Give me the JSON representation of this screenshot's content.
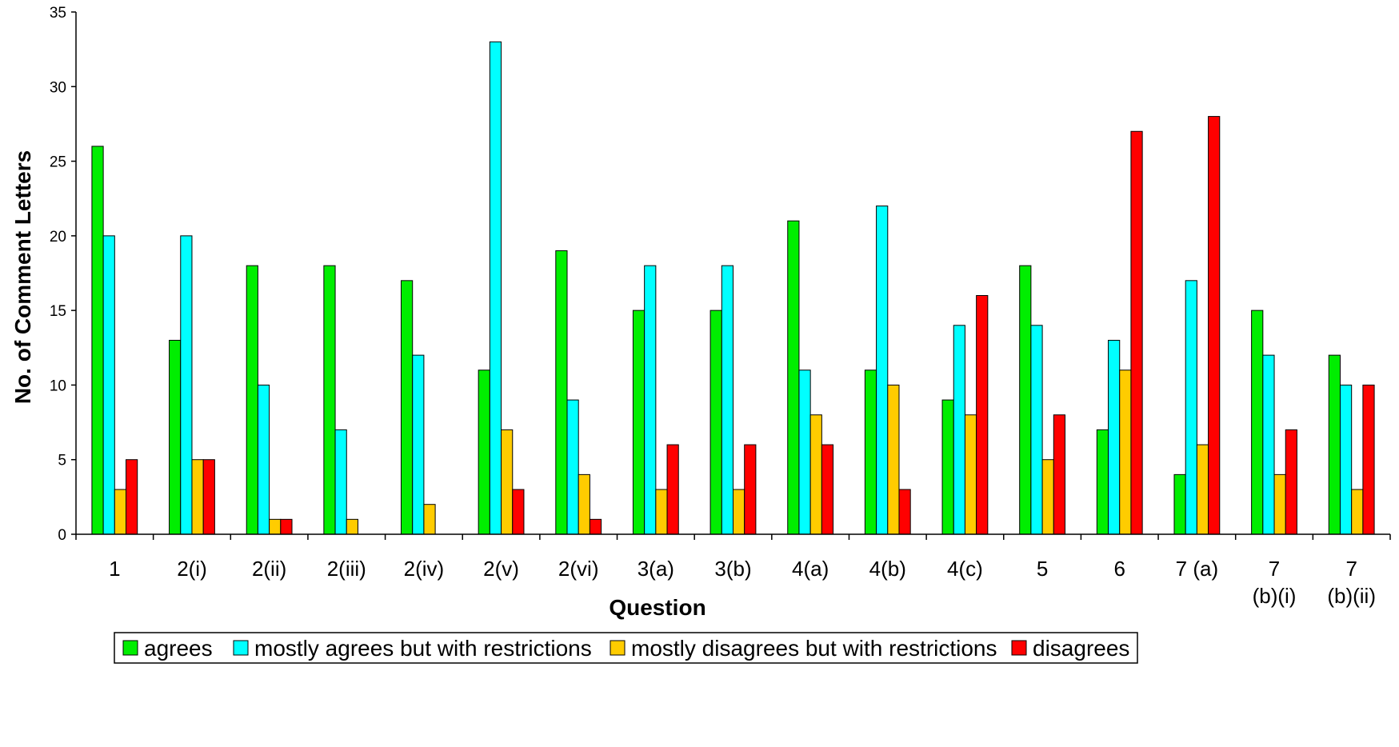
{
  "chart_data": {
    "type": "bar",
    "title": "",
    "xlabel": "Question",
    "ylabel": "No. of Comment Letters",
    "ylim": [
      0,
      35
    ],
    "yticks": [
      0,
      5,
      10,
      15,
      20,
      25,
      30,
      35
    ],
    "grid": false,
    "legend_position": "bottom",
    "categories": [
      [
        "1"
      ],
      [
        "2(i)"
      ],
      [
        "2(ii)"
      ],
      [
        "2(iii)"
      ],
      [
        "2(iv)"
      ],
      [
        "2(v)"
      ],
      [
        "2(vi)"
      ],
      [
        "3(a)"
      ],
      [
        "3(b)"
      ],
      [
        "4(a)"
      ],
      [
        "4(b)"
      ],
      [
        "4(c)"
      ],
      [
        "5"
      ],
      [
        "6"
      ],
      [
        "7 (a)"
      ],
      [
        "7",
        "(b)(i)"
      ],
      [
        "7",
        "(b)(ii)"
      ]
    ],
    "series": [
      {
        "name": "agrees",
        "color": "#00ee00",
        "values": [
          26,
          13,
          18,
          18,
          17,
          11,
          19,
          15,
          15,
          21,
          11,
          9,
          18,
          7,
          4,
          15,
          12
        ]
      },
      {
        "name": "mostly agrees but with restrictions",
        "color": "#00ffff",
        "values": [
          20,
          20,
          10,
          7,
          12,
          33,
          9,
          18,
          18,
          11,
          22,
          14,
          14,
          13,
          17,
          12,
          10
        ]
      },
      {
        "name": "mostly disagrees but with restrictions",
        "color": "#ffcc00",
        "values": [
          3,
          5,
          1,
          1,
          2,
          7,
          4,
          3,
          3,
          8,
          10,
          8,
          5,
          11,
          6,
          4,
          3
        ]
      },
      {
        "name": "disagrees",
        "color": "#ff0000",
        "values": [
          5,
          5,
          1,
          0,
          0,
          3,
          1,
          6,
          6,
          6,
          3,
          16,
          8,
          27,
          28,
          7,
          10
        ]
      }
    ]
  }
}
